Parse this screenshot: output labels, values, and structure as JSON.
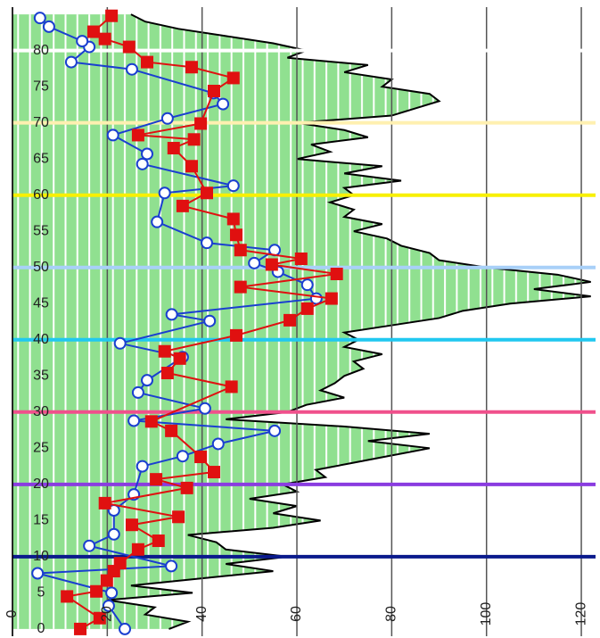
{
  "chart_data": {
    "type": "line",
    "orientation": "horizontal",
    "xlim": [
      0,
      123
    ],
    "xticks": [
      0,
      20,
      40,
      60,
      80,
      100,
      120
    ],
    "ylim": [
      -1,
      86
    ],
    "yticks": [
      0,
      5,
      10,
      15,
      20,
      25,
      30,
      35,
      40,
      45,
      50,
      55,
      60,
      65,
      70,
      75,
      80
    ],
    "grid": true,
    "area": {
      "color": "#90e090",
      "y": [
        0,
        1,
        2,
        3,
        4,
        5,
        6,
        7,
        8,
        9,
        10,
        11,
        12,
        13,
        14,
        15,
        16,
        17,
        18,
        19,
        20,
        21,
        22,
        23,
        24,
        25,
        26,
        27,
        28,
        29,
        30,
        31,
        32,
        33,
        34,
        35,
        36,
        37,
        38,
        39,
        40,
        41,
        42,
        43,
        44,
        45,
        46,
        47,
        48,
        49,
        50,
        51,
        52,
        53,
        54,
        55,
        56,
        57,
        58,
        59,
        60,
        61,
        62,
        63,
        64,
        65,
        66,
        67,
        68,
        69,
        70,
        71,
        72,
        73,
        74,
        75,
        76,
        77,
        78,
        79,
        80,
        81,
        82,
        83,
        84,
        85
      ],
      "values": [
        33,
        37,
        28,
        30,
        20,
        38,
        25,
        40,
        55,
        45,
        58,
        45,
        43,
        37,
        55,
        65,
        55,
        60,
        50,
        60,
        57,
        66,
        64,
        72,
        80,
        88,
        75,
        88,
        70,
        45,
        58,
        62,
        70,
        65,
        68,
        70,
        74,
        72,
        78,
        70,
        73,
        70,
        80,
        90,
        95,
        105,
        122,
        110,
        122,
        115,
        100,
        90,
        88,
        82,
        79,
        72,
        78,
        70,
        72,
        67,
        72,
        70,
        82,
        70,
        78,
        60,
        67,
        63,
        75,
        70,
        60,
        80,
        85,
        90,
        88,
        78,
        80,
        70,
        75,
        58,
        62,
        55,
        45,
        35,
        28,
        25
      ]
    },
    "series": [
      {
        "color": "#1a3fd0",
        "marker": "circle",
        "y": [
          0,
          3.2,
          5,
          7.7,
          8.7,
          11.5,
          13.1,
          16.4,
          18.6,
          22.5,
          23.9,
          25.6,
          27.4,
          28.8,
          30.5,
          32.7,
          34.4,
          37.6,
          39.5,
          42.6,
          43.5,
          45.7,
          47.6,
          49.4,
          50.6,
          52.4,
          53.4,
          56.3,
          60.3,
          61.3,
          64.3,
          65.7,
          68.3,
          70.6,
          72.6,
          74.1,
          77.4,
          78.4,
          80.5,
          81.3,
          83.3,
          84.5
        ],
        "values": [
          23.7,
          20.3,
          20.9,
          5.3,
          33.5,
          16.2,
          21.4,
          21.4,
          25.6,
          27.4,
          35.9,
          43.4,
          55.3,
          25.6,
          40.6,
          26.5,
          28.4,
          35.9,
          22.7,
          41.6,
          33.6,
          64.1,
          62.2,
          56,
          51,
          55.3,
          41,
          30.5,
          32.1,
          46.6,
          27.4,
          28.4,
          21.2,
          32.7,
          44.4,
          42.4,
          25.2,
          12.4,
          16.2,
          14.7,
          7.7,
          5.8
        ]
      },
      {
        "color": "#e01010",
        "marker": "square",
        "y": [
          0,
          1.5,
          4.5,
          5.2,
          6.7,
          8,
          9.1,
          11,
          12.2,
          14.4,
          15.5,
          17.4,
          19.5,
          20.7,
          21.7,
          23.8,
          27.4,
          28.7,
          33.5,
          35.4,
          37.4,
          38.4,
          40.6,
          42.7,
          44.3,
          45.7,
          47.3,
          49.1,
          50.4,
          51.2,
          52.4,
          54.5,
          56.7,
          58.5,
          60.3,
          64,
          66.5,
          67.7,
          68.3,
          69.9,
          74.4,
          76.2,
          77.7,
          78.4,
          80.5,
          81.6,
          82.6,
          84.8
        ],
        "values": [
          14.3,
          18.4,
          11.5,
          17.7,
          19.9,
          21.4,
          22.7,
          26.5,
          30.8,
          25.2,
          35,
          19.5,
          36.8,
          30.3,
          42.5,
          39.7,
          33.5,
          29.3,
          46.2,
          32.7,
          35.3,
          32.1,
          47.2,
          58.5,
          62.2,
          67.3,
          48.1,
          68.4,
          54.7,
          60.9,
          48.1,
          47.2,
          46.6,
          35.9,
          41,
          37.8,
          34,
          38.3,
          26.5,
          39.7,
          42.5,
          46.6,
          37.8,
          28.4,
          24.6,
          19.5,
          17.1,
          20.9
        ]
      }
    ],
    "reference_lines": [
      {
        "value": 10,
        "color": "#0a1a8c"
      },
      {
        "value": 20,
        "color": "#8a3ce0"
      },
      {
        "value": 30,
        "color": "#f0508c"
      },
      {
        "value": 40,
        "color": "#20c8f0"
      },
      {
        "value": 50,
        "color": "#a8d0f8"
      },
      {
        "value": 60,
        "color": "#f8f000"
      },
      {
        "value": 70,
        "color": "#fff0b0"
      },
      {
        "value": 80,
        "color": "#ffffff"
      }
    ]
  }
}
